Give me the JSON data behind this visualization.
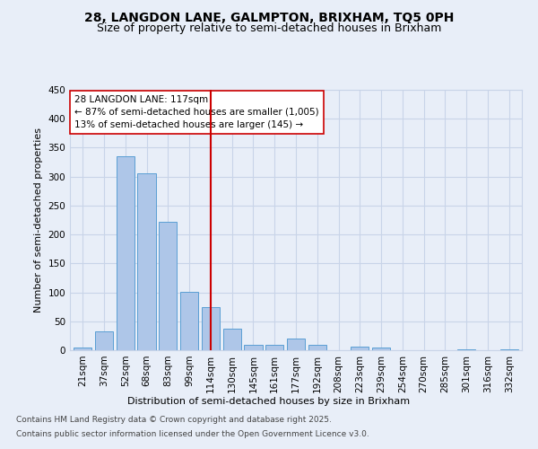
{
  "title_line1": "28, LANGDON LANE, GALMPTON, BRIXHAM, TQ5 0PH",
  "title_line2": "Size of property relative to semi-detached houses in Brixham",
  "xlabel": "Distribution of semi-detached houses by size in Brixham",
  "ylabel": "Number of semi-detached properties",
  "categories": [
    "21sqm",
    "37sqm",
    "52sqm",
    "68sqm",
    "83sqm",
    "99sqm",
    "114sqm",
    "130sqm",
    "145sqm",
    "161sqm",
    "177sqm",
    "192sqm",
    "208sqm",
    "223sqm",
    "239sqm",
    "254sqm",
    "270sqm",
    "285sqm",
    "301sqm",
    "316sqm",
    "332sqm"
  ],
  "values": [
    5,
    33,
    335,
    305,
    222,
    101,
    74,
    37,
    10,
    10,
    20,
    10,
    0,
    6,
    4,
    0,
    0,
    0,
    2,
    0,
    2
  ],
  "bar_color": "#aec6e8",
  "bar_edge_color": "#5a9fd4",
  "vline_x_index": 6,
  "vline_color": "#cc0000",
  "annotation_text": "28 LANGDON LANE: 117sqm\n← 87% of semi-detached houses are smaller (1,005)\n13% of semi-detached houses are larger (145) →",
  "annotation_box_color": "#ffffff",
  "annotation_box_edge": "#cc0000",
  "ylim": [
    0,
    450
  ],
  "yticks": [
    0,
    50,
    100,
    150,
    200,
    250,
    300,
    350,
    400,
    450
  ],
  "background_color": "#e8eef8",
  "grid_color": "#c8d4e8",
  "footer_line1": "Contains HM Land Registry data © Crown copyright and database right 2025.",
  "footer_line2": "Contains public sector information licensed under the Open Government Licence v3.0.",
  "title_fontsize": 10,
  "subtitle_fontsize": 9,
  "axis_label_fontsize": 8,
  "tick_fontsize": 7.5,
  "annotation_fontsize": 7.5,
  "footer_fontsize": 6.5
}
